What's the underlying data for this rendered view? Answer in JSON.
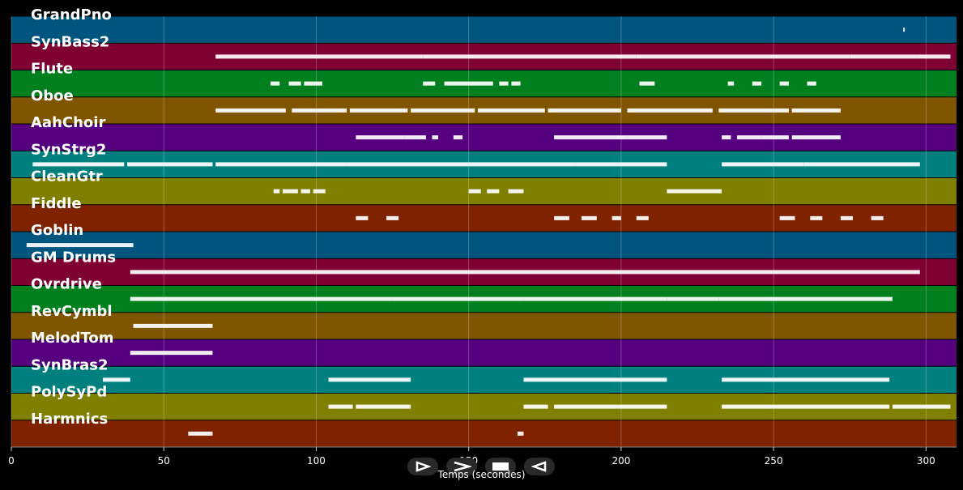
{
  "chart_data": {
    "type": "piano-roll",
    "xlabel": "Temps (secondes)",
    "xlim": [
      0,
      310
    ],
    "xticks": [
      0,
      50,
      100,
      150,
      200,
      250,
      300
    ],
    "grid": true,
    "tracks": [
      {
        "name": "GrandPno",
        "color": "#00557f",
        "segments": [
          [
            292.5,
            293
          ]
        ]
      },
      {
        "name": "SynBass2",
        "color": "#7f0033",
        "segments": [
          [
            67,
            100
          ],
          [
            100,
            135
          ],
          [
            135,
            170
          ],
          [
            170,
            205
          ],
          [
            205,
            240
          ],
          [
            240,
            275
          ],
          [
            275,
            297
          ],
          [
            297,
            308
          ]
        ]
      },
      {
        "name": "Flute",
        "color": "#007f1e",
        "segments": [
          [
            85,
            88
          ],
          [
            91,
            95
          ],
          [
            96,
            102
          ],
          [
            135,
            139
          ],
          [
            142,
            158
          ],
          [
            160,
            163
          ],
          [
            164,
            167
          ],
          [
            206,
            211
          ],
          [
            235,
            237
          ],
          [
            243,
            246
          ],
          [
            252,
            255
          ],
          [
            261,
            264
          ]
        ]
      },
      {
        "name": "Oboe",
        "color": "#7f5500",
        "segments": [
          [
            67,
            90
          ],
          [
            92,
            110
          ],
          [
            111,
            130
          ],
          [
            131,
            152
          ],
          [
            153,
            175
          ],
          [
            176,
            200
          ],
          [
            202,
            230
          ],
          [
            232,
            255
          ],
          [
            256,
            272
          ]
        ]
      },
      {
        "name": "AahChoir",
        "color": "#55007f",
        "segments": [
          [
            113,
            121
          ],
          [
            121,
            129
          ],
          [
            129,
            136
          ],
          [
            138,
            140
          ],
          [
            145,
            148
          ],
          [
            178,
            187
          ],
          [
            187,
            202
          ],
          [
            202,
            215
          ],
          [
            233,
            236
          ],
          [
            238,
            246
          ],
          [
            246,
            255
          ],
          [
            256,
            272
          ]
        ]
      },
      {
        "name": "SynStrg2",
        "color": "#007f7f",
        "segments": [
          [
            7,
            37
          ],
          [
            38,
            66
          ],
          [
            67,
            110
          ],
          [
            110,
            150
          ],
          [
            150,
            185
          ],
          [
            185,
            215
          ],
          [
            233,
            260
          ],
          [
            260,
            298
          ]
        ]
      },
      {
        "name": "CleanGtr",
        "color": "#7f7f00",
        "segments": [
          [
            86,
            88
          ],
          [
            89,
            94
          ],
          [
            95,
            98
          ],
          [
            99,
            103
          ],
          [
            150,
            154
          ],
          [
            156,
            160
          ],
          [
            163,
            168
          ],
          [
            215,
            233
          ]
        ]
      },
      {
        "name": "Fiddle",
        "color": "#7f2200",
        "segments": [
          [
            113,
            117
          ],
          [
            123,
            127
          ],
          [
            178,
            183
          ],
          [
            187,
            192
          ],
          [
            197,
            200
          ],
          [
            205,
            209
          ],
          [
            252,
            257
          ],
          [
            262,
            266
          ],
          [
            272,
            276
          ],
          [
            282,
            286
          ]
        ]
      },
      {
        "name": "Goblin",
        "color": "#00557f",
        "segments": [
          [
            5,
            40
          ]
        ]
      },
      {
        "name": "GM Drums",
        "color": "#7f0033",
        "segments": [
          [
            39,
            100
          ],
          [
            100,
            170
          ],
          [
            170,
            240
          ],
          [
            240,
            298
          ]
        ]
      },
      {
        "name": "Ovrdrive",
        "color": "#007f1e",
        "segments": [
          [
            39,
            102
          ],
          [
            102,
            125
          ],
          [
            125,
            168
          ],
          [
            168,
            215
          ],
          [
            215,
            232
          ],
          [
            232,
            289
          ]
        ]
      },
      {
        "name": "RevCymbl",
        "color": "#7f5500",
        "segments": [
          [
            40,
            66
          ]
        ]
      },
      {
        "name": "MelodTom",
        "color": "#55007f",
        "segments": [
          [
            39,
            66
          ]
        ]
      },
      {
        "name": "SynBras2",
        "color": "#007f7f",
        "segments": [
          [
            30,
            39
          ],
          [
            104,
            131
          ],
          [
            168,
            215
          ],
          [
            233,
            288
          ]
        ]
      },
      {
        "name": "PolySyPd",
        "color": "#7f7f00",
        "segments": [
          [
            104,
            112
          ],
          [
            113,
            131
          ],
          [
            168,
            176
          ],
          [
            178,
            215
          ],
          [
            233,
            288
          ],
          [
            289,
            308
          ]
        ]
      },
      {
        "name": "Harmnics",
        "color": "#7f2200",
        "segments": [
          [
            58,
            66
          ],
          [
            166,
            168
          ]
        ]
      }
    ]
  },
  "controls": [
    {
      "name": "play-forward-icon"
    },
    {
      "name": "fast-forward-icon"
    },
    {
      "name": "stop-icon"
    },
    {
      "name": "play-reverse-icon"
    }
  ]
}
